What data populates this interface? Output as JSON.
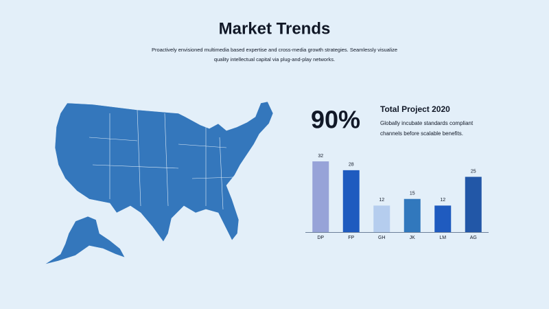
{
  "header": {
    "title": "Market Trends",
    "subtitle_lines": [
      "Proactively envisioned multimedia based expertise and cross-media growth strategies. Seamlessly visualize",
      "quality intellectual capital via plug-and-play networks."
    ]
  },
  "stat": {
    "value": "90%",
    "title": "Total Project 2020",
    "description_lines": [
      "Globally incubate standards compliant",
      "channels before scalable benefits."
    ]
  },
  "chart_data": {
    "type": "bar",
    "categories": [
      "DP",
      "FP",
      "GH",
      "JK",
      "LM",
      "AG"
    ],
    "values": [
      32,
      28,
      12,
      15,
      12,
      25
    ],
    "colors": [
      "#97a3d8",
      "#1f5bbf",
      "#b5cdee",
      "#3178bd",
      "#1f5bbf",
      "#2257a7"
    ]
  }
}
